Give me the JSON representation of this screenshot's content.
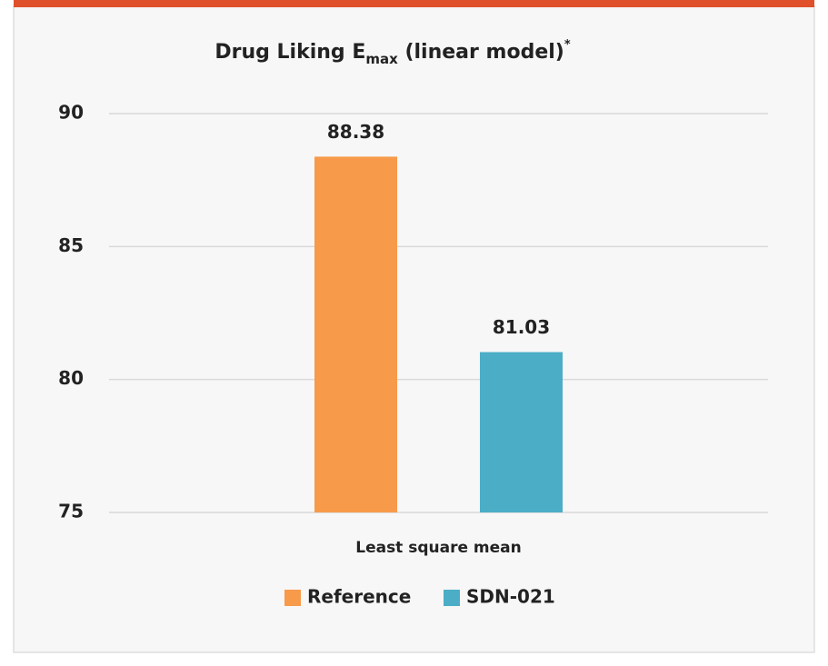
{
  "chart_data": {
    "type": "bar",
    "title": [
      "Drug Liking E",
      "max",
      " (linear model)",
      "*"
    ],
    "categories": [
      "Least square mean"
    ],
    "series": [
      {
        "name": "Reference",
        "color": "#f79a4a",
        "values": [
          88.38
        ]
      },
      {
        "name": "SDN-021",
        "color": "#4badc6",
        "values": [
          81.03
        ]
      }
    ],
    "ylim": [
      75,
      90
    ],
    "yticks": [
      75,
      80,
      85,
      90
    ],
    "grid": true,
    "legend": "bottom"
  }
}
